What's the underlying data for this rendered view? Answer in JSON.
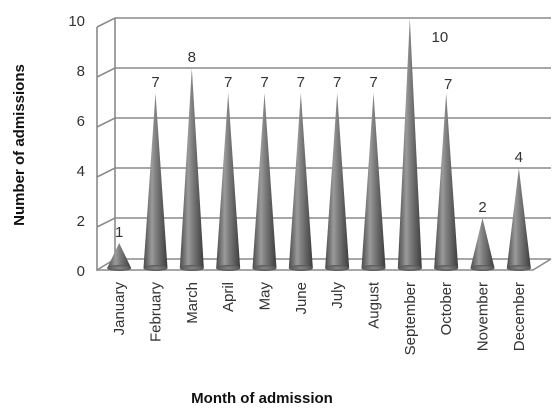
{
  "chart_data": {
    "type": "bar",
    "bar_shape": "cone",
    "categories": [
      "January",
      "February",
      "March",
      "April",
      "May",
      "June",
      "July",
      "August",
      "September",
      "October",
      "November",
      "December"
    ],
    "values": [
      1,
      7,
      8,
      7,
      7,
      7,
      7,
      7,
      10,
      7,
      2,
      4
    ],
    "data_labels": [
      "1",
      "7",
      "8",
      "7",
      "7",
      "7",
      "7",
      "7",
      "10",
      "7",
      "2",
      "4"
    ],
    "xlabel": "Month of admission",
    "ylabel": "Number of admissions",
    "ylim": [
      0,
      10
    ],
    "yticks": [
      "0",
      "2",
      "4",
      "6",
      "8",
      "10"
    ],
    "grid": true,
    "legend": "none",
    "colors": {
      "cone": "#6e6e6e",
      "grid": "#8a8a8a",
      "text": "#333333"
    }
  }
}
